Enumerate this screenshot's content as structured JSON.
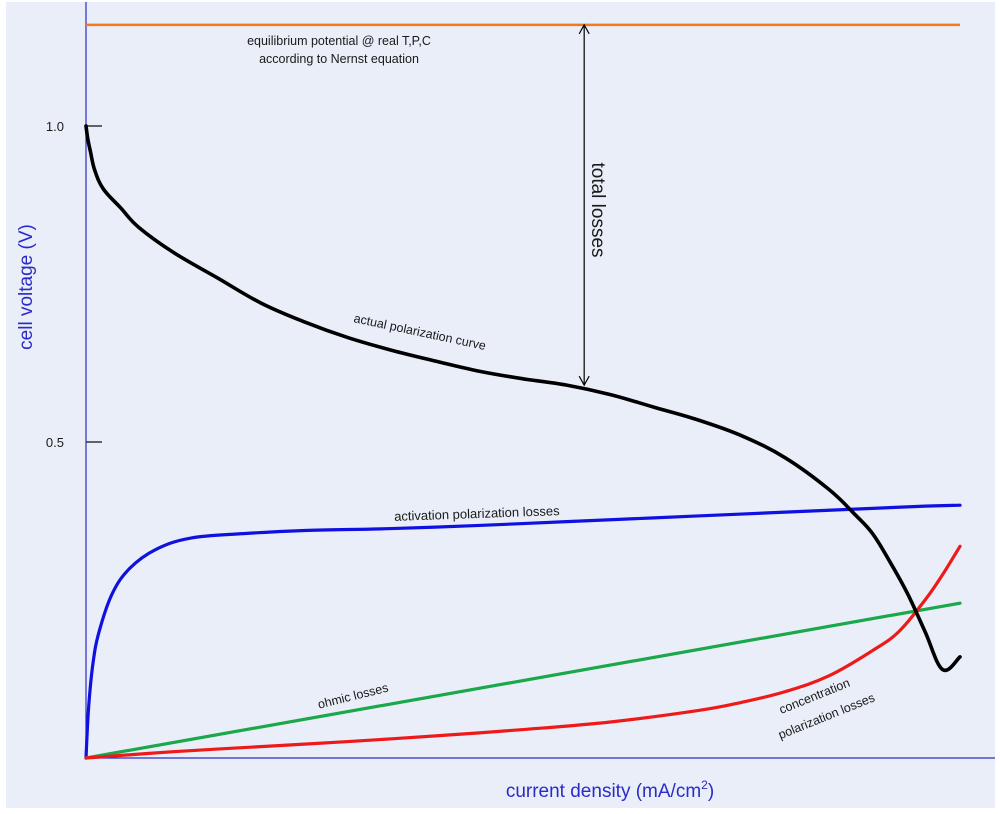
{
  "chart_data": {
    "type": "line",
    "xlabel": "current density (mA/cm",
    "xlabel_superscript": "2",
    "xlabel_suffix": ")",
    "ylabel": "cell voltage (V)",
    "ylim": [
      0,
      1.2
    ],
    "y_ticks": [
      {
        "value": 1.0,
        "label": "1.0"
      },
      {
        "value": 0.5,
        "label": "0.5"
      }
    ],
    "x_ticks_shown": false,
    "grid": false,
    "colors": {
      "background": "#e9eef8",
      "axis": "#2b2bc8",
      "axis_label": "#2b2bc8",
      "equilibrium": "#f07a20",
      "actual": "#000000",
      "activation": "#1010e0",
      "ohmic": "#1aa84a",
      "concentration": "#ee1a1a",
      "arrow": "#000000"
    },
    "equilibrium_potential": {
      "y": 1.16,
      "label_line1": "equilibrium potential @ real T,P,C",
      "label_line2": "according to Nernst equation"
    },
    "total_losses": {
      "label": "total losses",
      "x": 0.57,
      "y_from": 0.59,
      "y_to": 1.16
    },
    "series": [
      {
        "key": "actual",
        "label": "actual polarization curve",
        "x": [
          0.0,
          0.002,
          0.005,
          0.01,
          0.02,
          0.04,
          0.06,
          0.1,
          0.15,
          0.2,
          0.25,
          0.3,
          0.35,
          0.4,
          0.45,
          0.5,
          0.55,
          0.6,
          0.65,
          0.7,
          0.75,
          0.8,
          0.85,
          0.88,
          0.9,
          0.92,
          0.94,
          0.96,
          0.98,
          1.0
        ],
        "y": [
          1.0,
          0.98,
          0.96,
          0.93,
          0.9,
          0.87,
          0.84,
          0.8,
          0.76,
          0.72,
          0.69,
          0.665,
          0.645,
          0.628,
          0.612,
          0.6,
          0.59,
          0.575,
          0.555,
          0.535,
          0.51,
          0.475,
          0.425,
          0.385,
          0.355,
          0.31,
          0.26,
          0.2,
          0.14,
          0.16
        ]
      },
      {
        "key": "activation",
        "label": "activation polarization losses",
        "x": [
          0.0,
          0.003,
          0.008,
          0.015,
          0.03,
          0.05,
          0.08,
          0.12,
          0.18,
          0.25,
          0.35,
          0.45,
          0.55,
          0.65,
          0.75,
          0.85,
          0.95,
          1.0
        ],
        "y": [
          0.0,
          0.08,
          0.15,
          0.2,
          0.26,
          0.3,
          0.33,
          0.348,
          0.355,
          0.36,
          0.363,
          0.368,
          0.374,
          0.38,
          0.386,
          0.392,
          0.398,
          0.4
        ]
      },
      {
        "key": "ohmic",
        "label": "ohmic losses",
        "x": [
          0.0,
          1.0
        ],
        "y": [
          0.0,
          0.245
        ]
      },
      {
        "key": "concentration",
        "label_line1": "concentration",
        "label_line2": "polarization losses",
        "x": [
          0.0,
          0.1,
          0.2,
          0.3,
          0.4,
          0.5,
          0.6,
          0.7,
          0.75,
          0.8,
          0.85,
          0.9,
          0.93,
          0.96,
          0.98,
          1.0
        ],
        "y": [
          0.0,
          0.01,
          0.018,
          0.026,
          0.035,
          0.045,
          0.057,
          0.075,
          0.088,
          0.105,
          0.13,
          0.17,
          0.2,
          0.25,
          0.29,
          0.335
        ]
      }
    ]
  }
}
